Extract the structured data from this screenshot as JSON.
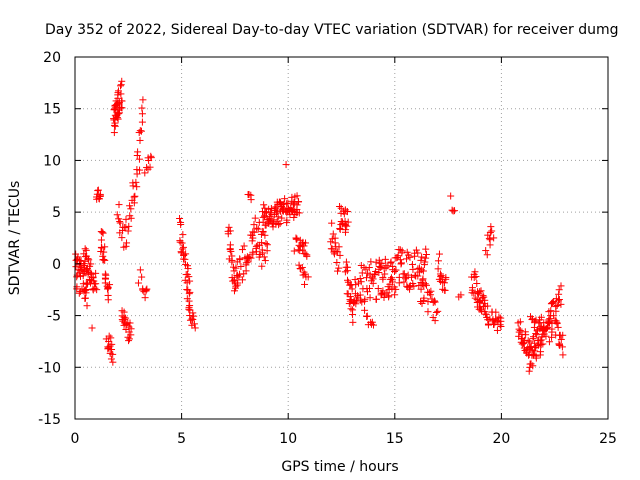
{
  "chart_data": {
    "type": "scatter",
    "title": "Day 352 of 2022, Sidereal Day-to-day VTEC variation (SDTVAR) for receiver dumg",
    "xlabel": "GPS time / hours",
    "ylabel": "SDTVAR / TECUs",
    "xlim": [
      0,
      25
    ],
    "ylim": [
      -15,
      20
    ],
    "xticks": [
      "0",
      "5",
      "10",
      "15",
      "20",
      "25"
    ],
    "yticks": [
      "-15",
      "-10",
      "-5",
      "0",
      "5",
      "10",
      "15",
      "20"
    ],
    "grid": true,
    "marker": "+",
    "color": "#ff0000",
    "series": [
      {
        "name": "SDTVAR",
        "segments": [
          {
            "x": [
              0.0,
              0.6
            ],
            "y": [
              -0.5,
              -2.5
            ],
            "spread": 1.8,
            "n": 45
          },
          {
            "x": [
              0.4,
              1.0
            ],
            "y": [
              0.5,
              -1.5
            ],
            "spread": 1.5,
            "n": 30
          },
          {
            "x": [
              1.0,
              1.2
            ],
            "y": [
              7.0,
              6.2
            ],
            "spread": 0.8,
            "n": 10
          },
          {
            "x": [
              1.2,
              1.6
            ],
            "y": [
              2.5,
              -2.0
            ],
            "spread": 1.8,
            "n": 25
          },
          {
            "x": [
              1.5,
              1.8
            ],
            "y": [
              -7.0,
              -9.0
            ],
            "spread": 1.0,
            "n": 14
          },
          {
            "x": [
              1.8,
              2.2
            ],
            "y": [
              14.0,
              16.5
            ],
            "spread": 1.5,
            "n": 40
          },
          {
            "x": [
              2.0,
              2.4
            ],
            "y": [
              5.0,
              2.0
            ],
            "spread": 1.5,
            "n": 12
          },
          {
            "x": [
              2.2,
              2.6
            ],
            "y": [
              -4.5,
              -7.0
            ],
            "spread": 1.3,
            "n": 22
          },
          {
            "x": [
              2.4,
              2.8
            ],
            "y": [
              3.0,
              7.5
            ],
            "spread": 1.5,
            "n": 12
          },
          {
            "x": [
              2.8,
              3.2
            ],
            "y": [
              7.0,
              14.5
            ],
            "spread": 1.5,
            "n": 18
          },
          {
            "x": [
              3.0,
              3.4
            ],
            "y": [
              -1.0,
              -3.0
            ],
            "spread": 1.0,
            "n": 10
          },
          {
            "x": [
              3.3,
              3.6
            ],
            "y": [
              9.0,
              10.5
            ],
            "spread": 0.8,
            "n": 8
          },
          {
            "x": [
              4.9,
              5.4
            ],
            "y": [
              3.5,
              -3.0
            ],
            "spread": 1.5,
            "n": 30
          },
          {
            "x": [
              5.3,
              5.6
            ],
            "y": [
              -4.0,
              -6.5
            ],
            "spread": 1.0,
            "n": 14
          },
          {
            "x": [
              7.2,
              7.6
            ],
            "y": [
              2.5,
              -2.5
            ],
            "spread": 1.5,
            "n": 25
          },
          {
            "x": [
              7.6,
              8.3
            ],
            "y": [
              -1.0,
              2.0
            ],
            "spread": 1.6,
            "n": 25
          },
          {
            "x": [
              8.1,
              8.3
            ],
            "y": [
              6.5,
              6.5
            ],
            "spread": 0.3,
            "n": 4
          },
          {
            "x": [
              8.3,
              9.0
            ],
            "y": [
              3.0,
              1.0
            ],
            "spread": 2.0,
            "n": 30
          },
          {
            "x": [
              8.8,
              10.5
            ],
            "y": [
              4.5,
              5.5
            ],
            "spread": 1.2,
            "n": 90
          },
          {
            "x": [
              10.3,
              10.9
            ],
            "y": [
              2.0,
              1.5
            ],
            "spread": 0.8,
            "n": 18
          },
          {
            "x": [
              10.5,
              10.9
            ],
            "y": [
              -0.5,
              -2.0
            ],
            "spread": 0.8,
            "n": 10
          },
          {
            "x": [
              12.0,
              12.4
            ],
            "y": [
              3.0,
              0.0
            ],
            "spread": 1.5,
            "n": 18
          },
          {
            "x": [
              12.4,
              12.8
            ],
            "y": [
              4.5,
              4.0
            ],
            "spread": 1.2,
            "n": 22
          },
          {
            "x": [
              12.7,
              13.1
            ],
            "y": [
              -1.0,
              -4.5
            ],
            "spread": 1.5,
            "n": 25
          },
          {
            "x": [
              13.1,
              14.3
            ],
            "y": [
              -2.0,
              -1.5
            ],
            "spread": 2.0,
            "n": 45
          },
          {
            "x": [
              13.6,
              14.0
            ],
            "y": [
              -5.0,
              -6.5
            ],
            "spread": 0.8,
            "n": 8
          },
          {
            "x": [
              14.3,
              15.0
            ],
            "y": [
              -1.0,
              -2.0
            ],
            "spread": 2.0,
            "n": 35
          },
          {
            "x": [
              15.0,
              16.5
            ],
            "y": [
              -0.5,
              -0.5
            ],
            "spread": 2.0,
            "n": 60
          },
          {
            "x": [
              16.2,
              17.0
            ],
            "y": [
              -2.5,
              -4.5
            ],
            "spread": 1.2,
            "n": 22
          },
          {
            "x": [
              17.0,
              17.4
            ],
            "y": [
              0.0,
              -2.5
            ],
            "spread": 1.5,
            "n": 16
          },
          {
            "x": [
              17.6,
              17.8
            ],
            "y": [
              6.0,
              5.0
            ],
            "spread": 0.6,
            "n": 4
          },
          {
            "x": [
              18.6,
              19.0
            ],
            "y": [
              -1.5,
              -3.5
            ],
            "spread": 1.5,
            "n": 18
          },
          {
            "x": [
              18.9,
              19.4
            ],
            "y": [
              -3.0,
              -5.0
            ],
            "spread": 1.0,
            "n": 24
          },
          {
            "x": [
              19.3,
              19.6
            ],
            "y": [
              1.5,
              3.5
            ],
            "spread": 1.0,
            "n": 10
          },
          {
            "x": [
              19.5,
              20.0
            ],
            "y": [
              -5.0,
              -6.0
            ],
            "spread": 0.8,
            "n": 18
          },
          {
            "x": [
              20.8,
              21.4
            ],
            "y": [
              -6.0,
              -9.0
            ],
            "spread": 1.0,
            "n": 30
          },
          {
            "x": [
              21.3,
              22.0
            ],
            "y": [
              -9.5,
              -7.0
            ],
            "spread": 1.2,
            "n": 30
          },
          {
            "x": [
              21.4,
              22.4
            ],
            "y": [
              -6.0,
              -6.5
            ],
            "spread": 1.2,
            "n": 40
          },
          {
            "x": [
              22.2,
              22.8
            ],
            "y": [
              -5.0,
              -3.0
            ],
            "spread": 1.0,
            "n": 20
          },
          {
            "x": [
              22.5,
              22.9
            ],
            "y": [
              -6.0,
              -8.0
            ],
            "spread": 1.0,
            "n": 16
          }
        ],
        "isolated": [
          {
            "x": 0.8,
            "y": -6.2
          },
          {
            "x": 9.9,
            "y": 9.6
          },
          {
            "x": 18.0,
            "y": -3.2
          },
          {
            "x": 18.1,
            "y": -3.0
          },
          {
            "x": 2.1,
            "y": 3.0
          }
        ]
      }
    ]
  }
}
